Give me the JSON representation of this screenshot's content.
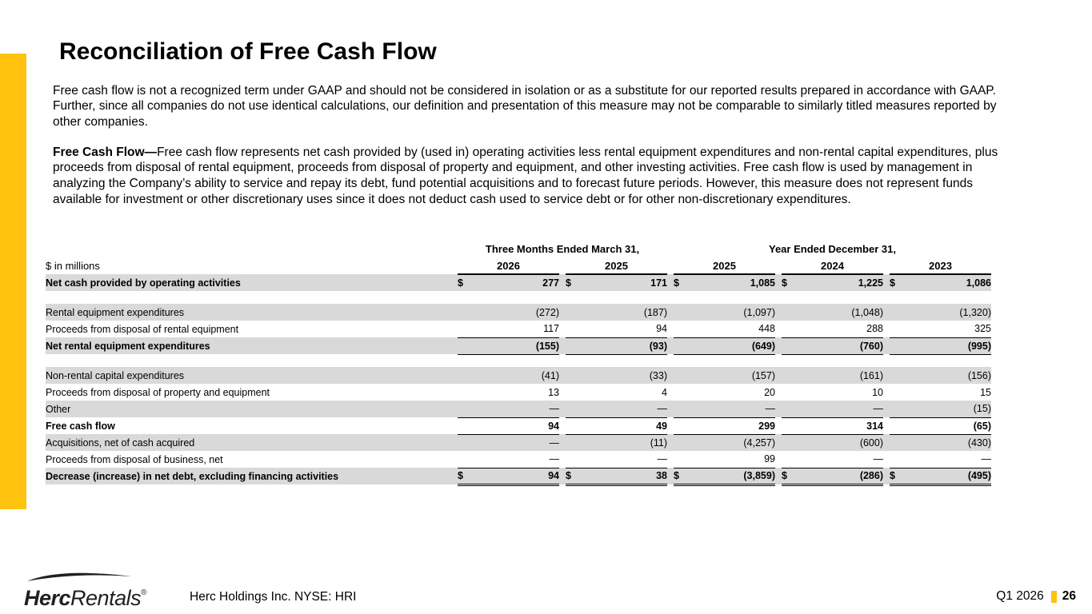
{
  "slide": {
    "title": "Reconciliation of Free Cash Flow",
    "paragraph1": "Free cash flow is not a recognized term under GAAP and should not be considered in isolation or as a substitute for our reported results prepared in accordance with GAAP.  Further, since all companies do not use identical calculations, our definition and presentation of this measure may not be comparable to similarly titled measures reported by other companies.",
    "paragraph2_lead": "Free Cash Flow—",
    "paragraph2_body": "Free cash flow represents net cash provided by (used in) operating activities less rental equipment expenditures and non-rental capital expenditures, plus proceeds from disposal of rental equipment, proceeds from disposal of property and equipment, and other investing activities. Free cash flow is used by management in analyzing the Company’s ability to service and repay its debt, fund potential acquisitions and to forecast future periods. However, this measure does not represent funds available for investment or other discretionary uses since it does not deduct cash used to service debt or for other non-discretionary expenditures.",
    "accent_color": "#FFC20E"
  },
  "table": {
    "units_label": "$ in millions",
    "col_groups": [
      {
        "label": "Three Months Ended March 31,",
        "span": 2
      },
      {
        "label": "Year Ended December 31,",
        "span": 3
      }
    ],
    "years": [
      "2026",
      "2025",
      "2025",
      "2024",
      "2023"
    ],
    "shaded_color": "#D9D9D9",
    "rows": [
      {
        "label": "Net cash provided by operating activities",
        "dollar": true,
        "bold": true,
        "shaded": true,
        "values": [
          "277",
          "171",
          "1,085",
          "1,225",
          "1,086"
        ]
      },
      {
        "spacer": true
      },
      {
        "label": "Rental equipment expenditures",
        "shaded": true,
        "values": [
          "(272)",
          "(187)",
          "(1,097)",
          "(1,048)",
          "(1,320)"
        ]
      },
      {
        "label": "Proceeds from disposal of rental equipment",
        "underline": true,
        "values": [
          "117",
          "94",
          "448",
          "288",
          "325"
        ]
      },
      {
        "label": "Net rental equipment expenditures",
        "bold": true,
        "shaded": true,
        "underline": true,
        "values": [
          "(155)",
          "(93)",
          "(649)",
          "(760)",
          "(995)"
        ]
      },
      {
        "spacer": true
      },
      {
        "label": "Non-rental capital expenditures",
        "shaded": true,
        "values": [
          "(41)",
          "(33)",
          "(157)",
          "(161)",
          "(156)"
        ]
      },
      {
        "label": "Proceeds from disposal of property and equipment",
        "values": [
          "13",
          "4",
          "20",
          "10",
          "15"
        ]
      },
      {
        "label": "Other",
        "shaded": true,
        "underline": true,
        "values": [
          "—",
          "—",
          "—",
          "—",
          "(15)"
        ]
      },
      {
        "label": "Free cash flow",
        "bold": true,
        "underline": true,
        "values": [
          "94",
          "49",
          "299",
          "314",
          "(65)"
        ]
      },
      {
        "label": "Acquisitions, net of cash acquired",
        "shaded": true,
        "values": [
          "—",
          "(11)",
          "(4,257)",
          "(600)",
          "(430)"
        ]
      },
      {
        "label": "Proceeds from disposal of business, net",
        "underline": true,
        "values": [
          "—",
          "—",
          "99",
          "—",
          "—"
        ]
      },
      {
        "label": "Decrease (increase) in net debt, excluding financing activities",
        "dollar": true,
        "bold": true,
        "shaded": true,
        "double": true,
        "values": [
          "94",
          "38",
          "(3,859)",
          "(286)",
          "(495)"
        ]
      }
    ]
  },
  "footer": {
    "logo_herc": "Herc",
    "logo_rentals": "Rentals",
    "logo_reg": "®",
    "company_line": "Herc Holdings Inc.  NYSE: HRI",
    "quarter_label": "Q1 2026",
    "page_number": "26"
  }
}
